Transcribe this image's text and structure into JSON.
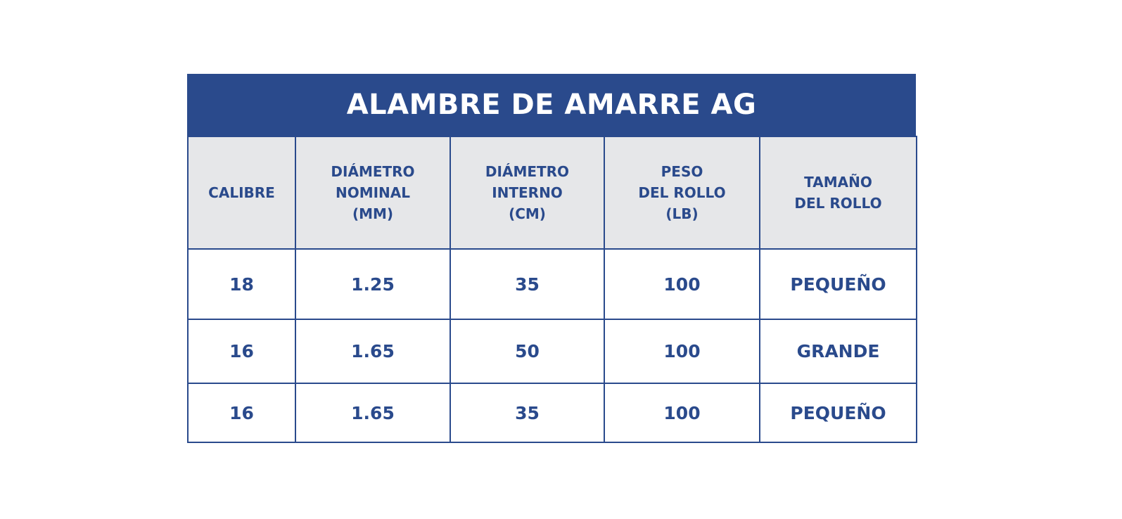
{
  "title": "ALAMBRE DE AMARRE AG",
  "colors": {
    "primary": "#2a4a8c",
    "header_bg": "#e6e7e9"
  },
  "headers": [
    [
      "CALIBRE"
    ],
    [
      "DIÁMETRO",
      "NOMINAL",
      "(MM)"
    ],
    [
      "DIÁMETRO",
      "INTERNO",
      "(CM)"
    ],
    [
      "PESO",
      "DEL ROLLO",
      "(LB)"
    ],
    [
      "TAMAÑO",
      "DEL ROLLO"
    ]
  ],
  "rows": [
    [
      "18",
      "1.25",
      "35",
      "100",
      "PEQUEÑO"
    ],
    [
      "16",
      "1.65",
      "50",
      "100",
      "GRANDE"
    ],
    [
      "16",
      "1.65",
      "35",
      "100",
      "PEQUEÑO"
    ]
  ]
}
